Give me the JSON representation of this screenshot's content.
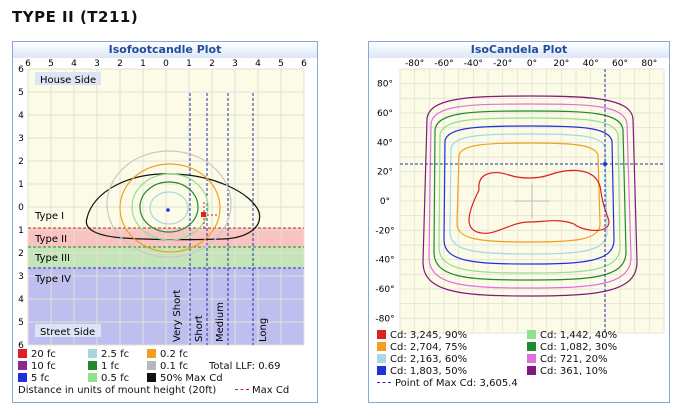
{
  "title": "TYPE II (T211)",
  "left": {
    "title": "Isofootcandle Plot",
    "x_ticks": [
      "6",
      "5",
      "4",
      "3",
      "2",
      "1",
      "0",
      "1",
      "2",
      "3",
      "4",
      "5",
      "6"
    ],
    "y_ticks": [
      "6",
      "5",
      "4",
      "3",
      "2",
      "1",
      "0",
      "1",
      "2",
      "3",
      "4",
      "5",
      "6"
    ],
    "house_side": "House Side",
    "street_side": "Street Side",
    "zones": [
      "Type I",
      "Type II",
      "Type III",
      "Type IV"
    ],
    "verticals": [
      "Very Short",
      "Short",
      "Medium",
      "Long"
    ],
    "legend": [
      {
        "label": "20 fc",
        "color": "#e02020"
      },
      {
        "label": "2.5 fc",
        "color": "#a6d8d8"
      },
      {
        "label": "0.2 fc",
        "color": "#f0a020"
      },
      {
        "label": "10 fc",
        "color": "#8a2a8a"
      },
      {
        "label": "1 fc",
        "color": "#1e8a2e"
      },
      {
        "label": "0.1 fc",
        "color": "#b8b8b8"
      },
      {
        "label": "5 fc",
        "color": "#2030e0"
      },
      {
        "label": "0.5 fc",
        "color": "#90e090"
      },
      {
        "label": "50% Max Cd",
        "color": "#111111"
      }
    ],
    "total_llf": "Total LLF: 0.69",
    "footer": "Distance in units of mount height (20ft)",
    "max_cd_label": "Max Cd"
  },
  "right": {
    "title": "IsoCandela Plot",
    "x_ticks": [
      "-80°",
      "-60°",
      "-40°",
      "-20°",
      "0°",
      "20°",
      "40°",
      "60°",
      "80°"
    ],
    "y_ticks": [
      "80°",
      "60°",
      "40°",
      "20°",
      "0°",
      "-20°",
      "-40°",
      "-60°",
      "-80°"
    ],
    "legend": [
      {
        "label": "Cd: 3,245, 90%",
        "color": "#e02020"
      },
      {
        "label": "Cd: 1,442, 40%",
        "color": "#90e090"
      },
      {
        "label": "Cd: 2,704, 75%",
        "color": "#f0a020"
      },
      {
        "label": "Cd: 1,082, 30%",
        "color": "#1e8a2e"
      },
      {
        "label": "Cd: 2,163, 60%",
        "color": "#a6d8e8"
      },
      {
        "label": "Cd: 721, 20%",
        "color": "#e070e0"
      },
      {
        "label": "Cd: 1,803, 50%",
        "color": "#2030e0"
      },
      {
        "label": "Cd: 361, 10%",
        "color": "#801a80"
      }
    ],
    "max_point": "Point of Max Cd: 3,605.4"
  }
}
